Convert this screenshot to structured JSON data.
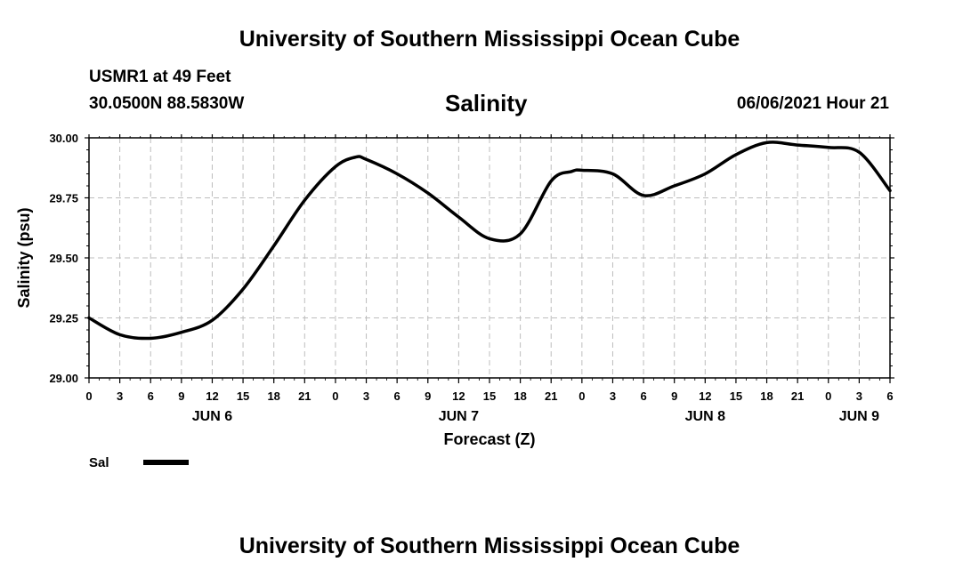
{
  "header": {
    "title": "University of Southern Mississippi Ocean Cube",
    "station": "USMR1 at 49 Feet",
    "coordinates": "30.0500N  88.5830W",
    "variable": "Salinity",
    "datetime": "06/06/2021 Hour 21"
  },
  "footer": {
    "title": "University of Southern Mississippi Ocean Cube"
  },
  "chart_data": {
    "type": "line",
    "title": "Salinity",
    "xlabel": "Forecast (Z)",
    "ylabel": "Salinity (psu)",
    "xlim": [
      0,
      78
    ],
    "ylim": [
      29.0,
      30.0
    ],
    "yticks": [
      29.0,
      29.25,
      29.5,
      29.75,
      30.0
    ],
    "ytick_labels": [
      "29.00",
      "29.25",
      "29.50",
      "29.75",
      "30.00"
    ],
    "xtick_hours": [
      0,
      3,
      6,
      9,
      12,
      15,
      18,
      21,
      24,
      27,
      30,
      33,
      36,
      39,
      42,
      45,
      48,
      51,
      54,
      57,
      60,
      63,
      66,
      69,
      72,
      75,
      78
    ],
    "xtick_labels": [
      "0",
      "3",
      "6",
      "9",
      "12",
      "15",
      "18",
      "21",
      "0",
      "3",
      "6",
      "9",
      "12",
      "15",
      "18",
      "21",
      "0",
      "3",
      "6",
      "9",
      "12",
      "15",
      "18",
      "21",
      "0",
      "3",
      "6"
    ],
    "day_labels": [
      {
        "label": "JUN 6",
        "hour": 12
      },
      {
        "label": "JUN 7",
        "hour": 36
      },
      {
        "label": "JUN 8",
        "hour": 60
      },
      {
        "label": "JUN 9",
        "hour": 75
      }
    ],
    "grid": true,
    "series": [
      {
        "name": "Sal",
        "x": [
          0,
          3,
          6,
          9,
          12,
          15,
          18,
          21,
          24,
          26,
          27,
          30,
          33,
          36,
          39,
          42,
          45,
          47,
          48,
          51,
          54,
          57,
          60,
          63,
          66,
          69,
          72,
          75,
          78
        ],
        "values": [
          29.25,
          29.18,
          29.165,
          29.19,
          29.24,
          29.37,
          29.55,
          29.74,
          29.88,
          29.92,
          29.91,
          29.85,
          29.77,
          29.67,
          29.58,
          29.6,
          29.82,
          29.86,
          29.865,
          29.85,
          29.76,
          29.8,
          29.85,
          29.93,
          29.98,
          29.97,
          29.96,
          29.94,
          29.78
        ]
      }
    ]
  },
  "legend": {
    "label": "Sal"
  }
}
